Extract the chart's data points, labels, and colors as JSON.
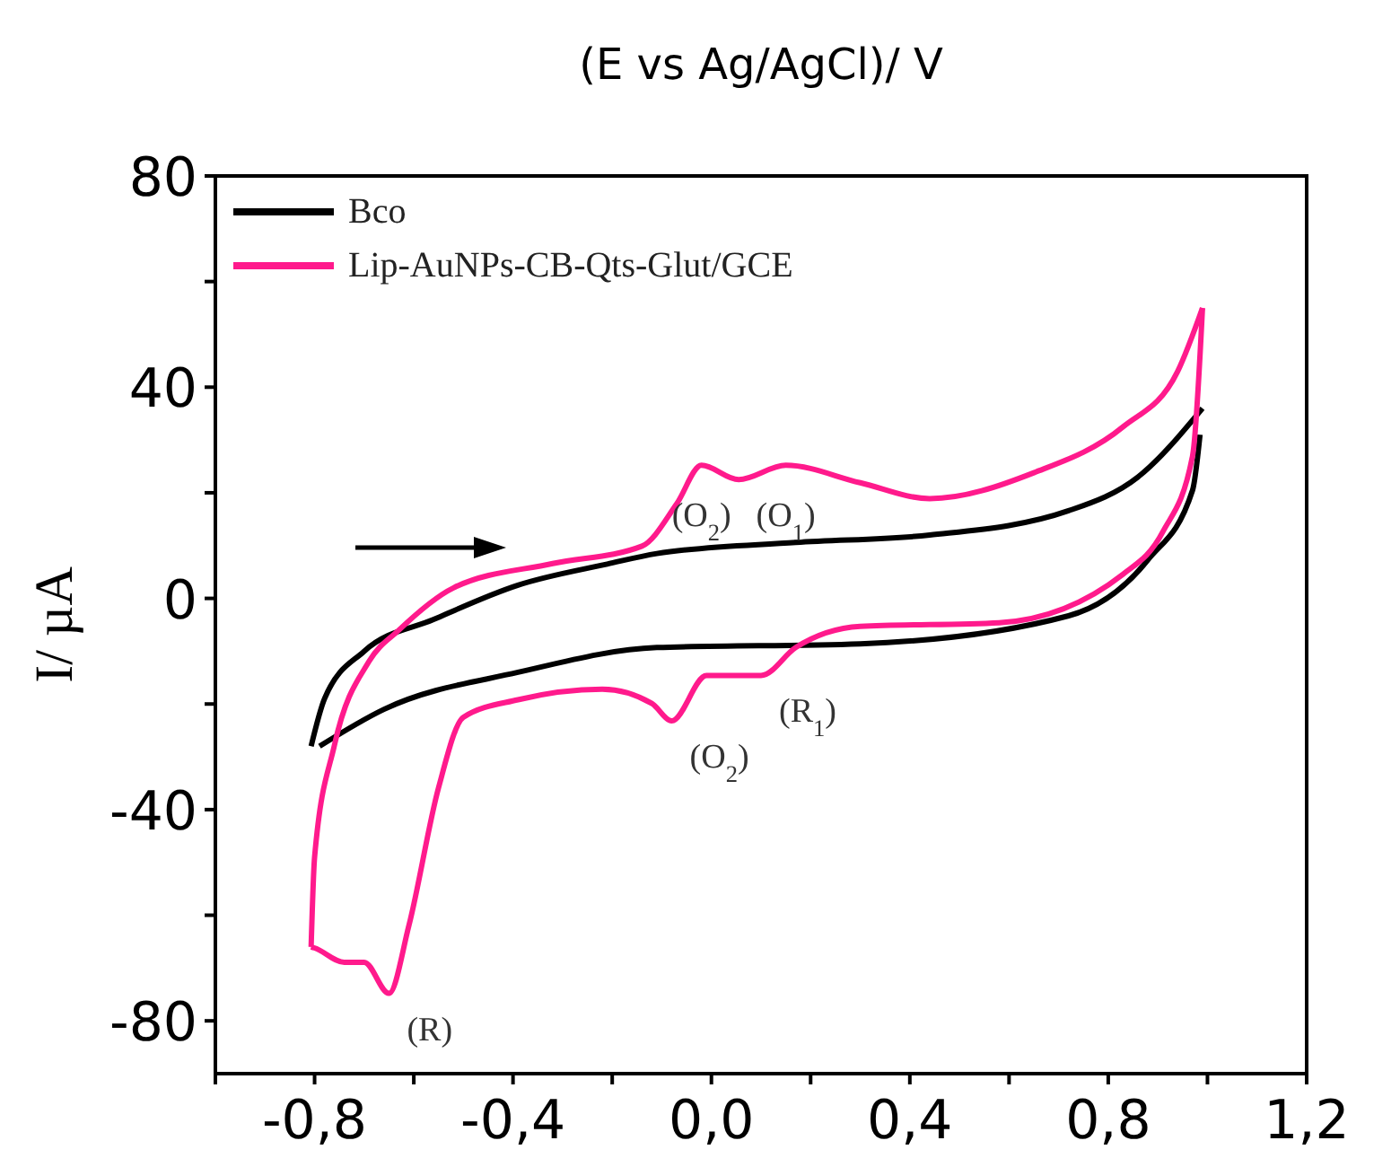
{
  "chart_data": {
    "type": "line",
    "xlabel": "(E vs Ag/AgCl)/ V",
    "ylabel": "I/ µA",
    "xlim": [
      -1.0,
      1.2
    ],
    "ylim": [
      -90,
      80
    ],
    "xticks": [
      {
        "value": -1.0,
        "label": null
      },
      {
        "value": -0.8,
        "label": "-0,8"
      },
      {
        "value": -0.6,
        "label": null
      },
      {
        "value": -0.4,
        "label": "-0,4"
      },
      {
        "value": -0.2,
        "label": null
      },
      {
        "value": 0.0,
        "label": "0,0"
      },
      {
        "value": 0.2,
        "label": null
      },
      {
        "value": 0.4,
        "label": "0,4"
      },
      {
        "value": 0.6,
        "label": null
      },
      {
        "value": 0.8,
        "label": "0,8"
      },
      {
        "value": 1.0,
        "label": null
      },
      {
        "value": 1.2,
        "label": "1,2"
      }
    ],
    "yticks": [
      -80,
      {
        "value": -60,
        "label": null
      },
      -40,
      {
        "value": -20,
        "label": null
      },
      0,
      {
        "value": 20,
        "label": null
      },
      40,
      {
        "value": 60,
        "label": null
      },
      80
    ],
    "grid": false,
    "legend": "top left",
    "marker": "none",
    "line_style": "solid",
    "series": [
      {
        "name": "Bco",
        "color": "#000000",
        "x": [
          -0.807,
          -0.78,
          -0.7,
          -0.56,
          -0.39,
          -0.21,
          -0.11,
          0.17,
          0.44,
          0.72,
          0.86,
          0.99
        ],
        "values": [
          -28,
          -19,
          -10,
          -4,
          2.5,
          6.5,
          8.5,
          10.6,
          12,
          16.6,
          23,
          36
        ]
      },
      {
        "color": "#000000",
        "x": [
          -0.79,
          -0.66,
          -0.39,
          -0.11,
          0.3,
          0.72,
          0.88,
          0.97,
          0.985
        ],
        "values": [
          -28,
          -21,
          -14,
          -9.3,
          -8.6,
          -3.3,
          7.3,
          20.5,
          31
        ]
      },
      {
        "name": "Lip-AuNPs-CB-Qts-Glut/GCE",
        "color": "#ff1a8c",
        "x": [
          -0.807,
          -0.8,
          -0.76,
          -0.69,
          -0.63,
          -0.52,
          -0.32,
          -0.14,
          -0.07,
          -0.02,
          0.055,
          0.15,
          0.3,
          0.44,
          0.65,
          0.83,
          0.94,
          0.99
        ],
        "values": [
          -66,
          -49,
          -27.8,
          -11.9,
          -6,
          2,
          6.6,
          9.9,
          17.9,
          25.2,
          22.5,
          25.2,
          21.9,
          18.9,
          23.8,
          32.5,
          43,
          55
        ]
      },
      {
        "color": "#ff1a8c",
        "x": [
          -0.807,
          -0.8,
          -0.74,
          -0.7,
          -0.65,
          -0.61,
          -0.55,
          -0.5,
          -0.39,
          -0.22,
          -0.12,
          -0.08,
          -0.01,
          0.1,
          0.17,
          0.3,
          0.58,
          0.83,
          0.91,
          0.97,
          0.99
        ],
        "values": [
          -66,
          -66.2,
          -68.9,
          -68.9,
          -74.8,
          -62,
          -35.8,
          -22.5,
          -19.2,
          -17.2,
          -19.9,
          -23.2,
          -14.6,
          -14.6,
          -9.3,
          -5.3,
          -4.6,
          4.6,
          12.6,
          27,
          55
        ]
      }
    ],
    "annotations": [
      {
        "text": "(O$_{2}$)",
        "x": -0.02,
        "y": 25.2
      },
      {
        "text": "(O$_{1}$)",
        "x": 0.15,
        "y": 25.2
      },
      {
        "text": "(O$_{2}$)",
        "x": -0.08,
        "y": -23.2
      },
      {
        "text": "(R$_{1}$)",
        "x": 0.1,
        "y": -14.6
      },
      {
        "text": "(R)",
        "x": -0.65,
        "y": -74.8
      }
    ]
  }
}
